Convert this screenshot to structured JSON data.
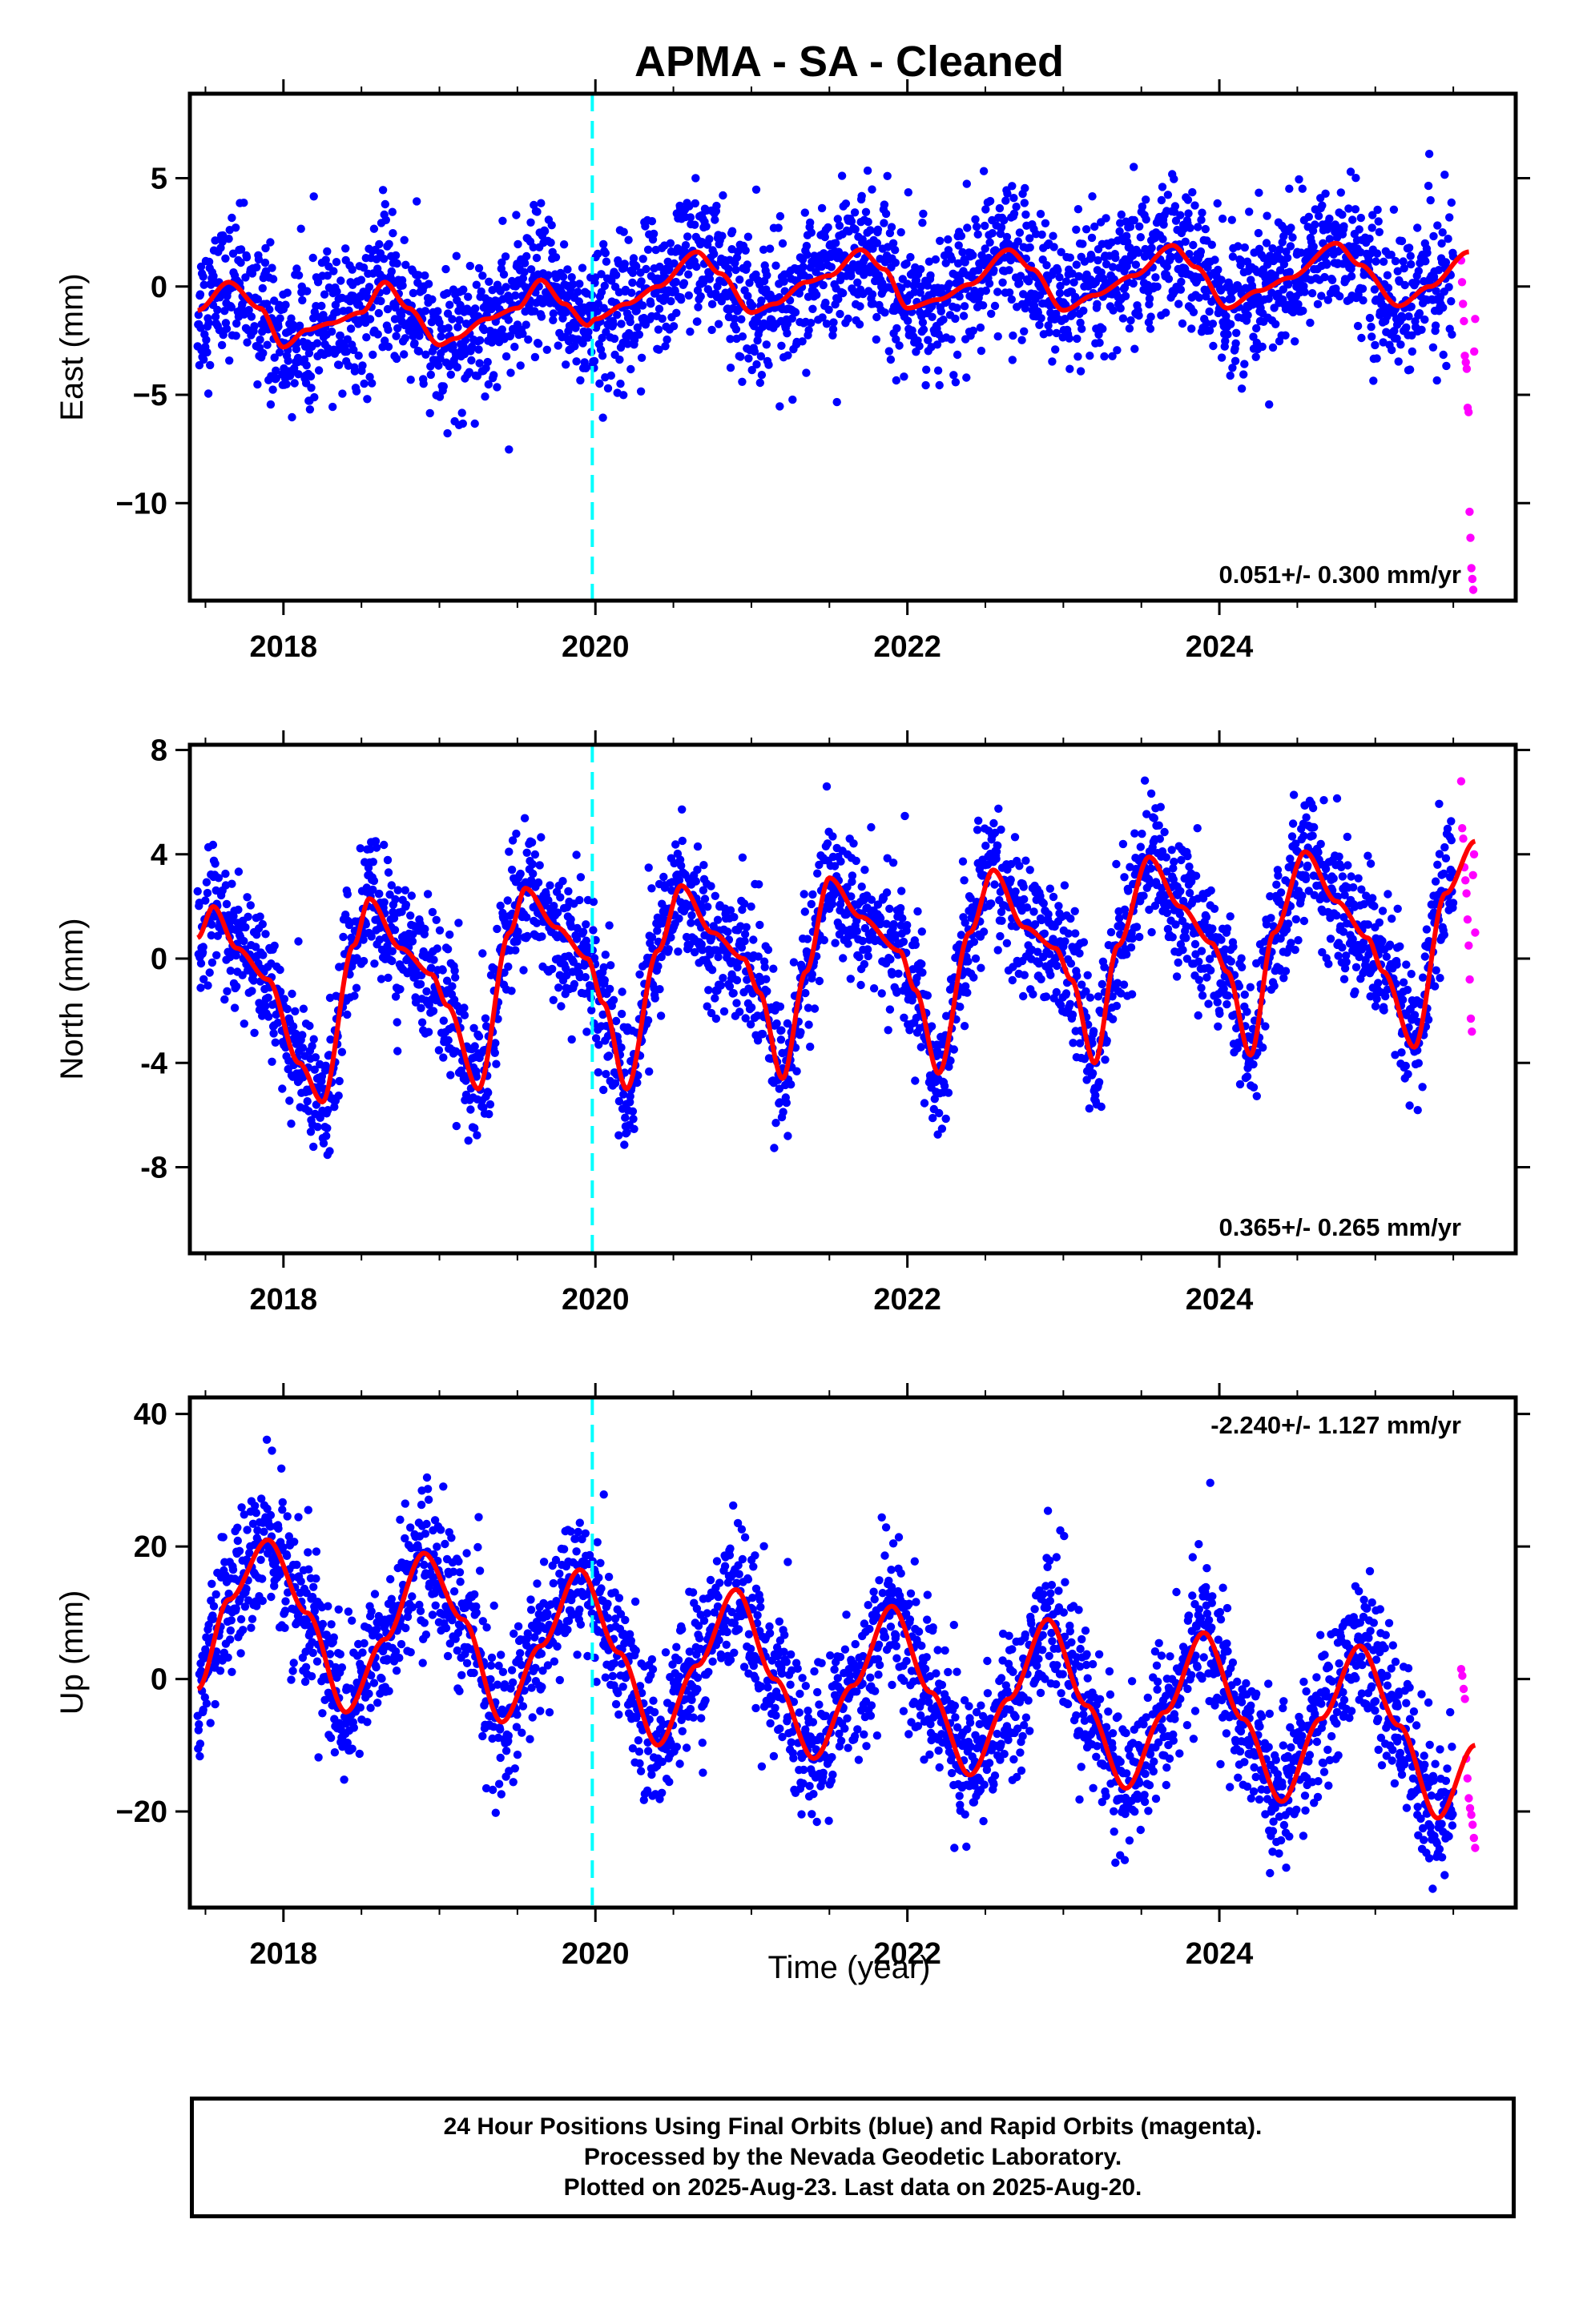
{
  "title": "APMA  - SA - Cleaned",
  "x_axis_label": "Time (year)",
  "footer": {
    "line1": "24 Hour Positions Using Final Orbits (blue) and Rapid Orbits (magenta).",
    "line2": "Processed by the Nevada Geodetic Laboratory.",
    "line3": "Plotted on 2025-Aug-23. Last data on 2025-Aug-20."
  },
  "colors": {
    "final_orbits": "#0000ff",
    "rapid_orbits": "#ff00ff",
    "model_fit": "#ff0000",
    "marker_line": "#00ffff"
  },
  "chart_data": [
    {
      "type": "scatter",
      "component": "East",
      "ylabel": "East (mm)",
      "xlim": [
        2017.4,
        2025.9
      ],
      "ylim": [
        -14.5,
        8.9
      ],
      "yticks": [
        5,
        0,
        -5,
        -10
      ],
      "ytick_labels": [
        "5",
        "0",
        "−5",
        "−10"
      ],
      "xticks": [
        2018,
        2020,
        2022,
        2024
      ],
      "xtick_labels": [
        "2018",
        "2020",
        "2022",
        "2024"
      ],
      "rate_label": "0.051+/- 0.300 mm/yr",
      "rate_position": "bottom-right",
      "vertical_line_x": 2019.98,
      "scatter_noise_sd": 1.6,
      "series": [
        {
          "name": "Final Orbits",
          "color": "#0000ff",
          "x_range": [
            2017.45,
            2025.5
          ],
          "points_shown": "daily"
        },
        {
          "name": "Rapid Orbits",
          "color": "#ff00ff",
          "x_range": [
            2025.55,
            2025.64
          ],
          "values": [
            1.2,
            0.2,
            -0.8,
            -1.6,
            -3.2,
            -3.5,
            -3.8,
            -5.6,
            -5.8,
            -10.4,
            -11.6,
            -13.0,
            -13.5,
            -14.0,
            -3.0,
            -1.5
          ]
        },
        {
          "name": "Model Fit",
          "color": "#ff0000",
          "x": [
            2017.45,
            2017.65,
            2017.85,
            2018.0,
            2018.15,
            2018.3,
            2018.5,
            2018.65,
            2018.8,
            2019.0,
            2019.1,
            2019.3,
            2019.5,
            2019.65,
            2019.8,
            2019.95,
            2020.0,
            2020.2,
            2020.4,
            2020.65,
            2020.8,
            2021.0,
            2021.15,
            2021.35,
            2021.5,
            2021.7,
            2021.85,
            2022.0,
            2022.2,
            2022.4,
            2022.65,
            2022.8,
            2023.0,
            2023.2,
            2023.45,
            2023.7,
            2023.85,
            2024.05,
            2024.25,
            2024.45,
            2024.75,
            2024.9,
            2025.15,
            2025.35,
            2025.6
          ],
          "y": [
            -1.1,
            0.2,
            -1.0,
            -2.8,
            -2.0,
            -1.7,
            -1.2,
            0.2,
            -1.0,
            -2.7,
            -2.4,
            -1.5,
            -1.0,
            0.3,
            -0.8,
            -1.8,
            -1.5,
            -0.8,
            0.0,
            1.6,
            0.6,
            -1.2,
            -0.8,
            0.2,
            0.5,
            1.7,
            0.8,
            -1.0,
            -0.6,
            0.1,
            1.7,
            0.8,
            -1.1,
            -0.4,
            0.5,
            1.9,
            0.9,
            -1.0,
            -0.2,
            0.4,
            2.0,
            1.0,
            -0.9,
            0.0,
            1.6
          ]
        }
      ]
    },
    {
      "type": "scatter",
      "component": "North",
      "ylabel": "North (mm)",
      "xlim": [
        2017.4,
        2025.9
      ],
      "ylim": [
        -11.3,
        8.2
      ],
      "yticks": [
        8,
        4,
        0,
        -4,
        -8
      ],
      "ytick_labels": [
        "8",
        "4",
        "0",
        "-4",
        "-8"
      ],
      "xticks": [
        2018,
        2020,
        2022,
        2024
      ],
      "xtick_labels": [
        "2018",
        "2020",
        "2022",
        "2024"
      ],
      "rate_label": "0.365+/- 0.265 mm/yr",
      "rate_position": "bottom-right",
      "vertical_line_x": 2019.98,
      "scatter_noise_sd": 1.3,
      "series": [
        {
          "name": "Final Orbits",
          "color": "#0000ff",
          "x_range": [
            2017.45,
            2025.5
          ],
          "points_shown": "daily"
        },
        {
          "name": "Rapid Orbits",
          "color": "#ff00ff",
          "x_range": [
            2025.55,
            2025.64
          ],
          "values": [
            6.8,
            5.0,
            4.6,
            3.5,
            3.0,
            2.5,
            1.5,
            0.5,
            -0.8,
            -2.3,
            -2.8,
            3.2,
            4.0,
            1.0
          ]
        },
        {
          "name": "Model Fit",
          "color": "#ff0000",
          "x": [
            2017.45,
            2017.55,
            2017.7,
            2017.9,
            2018.1,
            2018.25,
            2018.45,
            2018.55,
            2018.75,
            2018.95,
            2019.05,
            2019.25,
            2019.45,
            2019.55,
            2019.75,
            2019.95,
            2020.05,
            2020.2,
            2020.4,
            2020.55,
            2020.75,
            2020.95,
            2021.05,
            2021.2,
            2021.35,
            2021.5,
            2021.7,
            2021.95,
            2022.05,
            2022.2,
            2022.4,
            2022.55,
            2022.75,
            2022.95,
            2023.05,
            2023.2,
            2023.35,
            2023.55,
            2023.75,
            2023.95,
            2024.05,
            2024.2,
            2024.35,
            2024.55,
            2024.75,
            2024.95,
            2025.05,
            2025.25,
            2025.45,
            2025.64
          ],
          "y": [
            0.8,
            2.0,
            0.4,
            -0.8,
            -4.0,
            -5.5,
            0.5,
            2.3,
            0.4,
            -0.6,
            -1.8,
            -5.0,
            1.0,
            2.7,
            1.2,
            0.0,
            -1.7,
            -5.0,
            0.3,
            2.8,
            1.0,
            0.0,
            -1.3,
            -4.6,
            -0.5,
            3.1,
            1.6,
            0.3,
            -1.2,
            -4.4,
            1.0,
            3.4,
            1.2,
            0.4,
            -0.8,
            -4.0,
            0.5,
            3.9,
            2.0,
            0.6,
            -0.5,
            -3.7,
            1.0,
            4.1,
            2.2,
            0.8,
            -0.5,
            -3.4,
            2.5,
            4.5
          ]
        }
      ]
    },
    {
      "type": "scatter",
      "component": "Up",
      "ylabel": "Up (mm)",
      "xlim": [
        2017.4,
        2025.9
      ],
      "ylim": [
        -34.5,
        42.5
      ],
      "yticks": [
        40,
        20,
        0,
        -20
      ],
      "ytick_labels": [
        "40",
        "20",
        "0",
        "−20"
      ],
      "xticks": [
        2018,
        2020,
        2022,
        2024
      ],
      "xtick_labels": [
        "2018",
        "2020",
        "2022",
        "2024"
      ],
      "rate_label": "-2.240+/- 1.127 mm/yr",
      "rate_position": "top-right",
      "vertical_line_x": 2019.98,
      "scatter_noise_sd": 5.5,
      "series": [
        {
          "name": "Final Orbits",
          "color": "#0000ff",
          "x_range": [
            2017.45,
            2025.5
          ],
          "points_shown": "daily"
        },
        {
          "name": "Rapid Orbits",
          "color": "#ff00ff",
          "x_range": [
            2025.55,
            2025.64
          ],
          "values": [
            1.5,
            0.5,
            -1.5,
            -3.0,
            -12.0,
            -15.0,
            -18.0,
            -19.5,
            -20.5,
            -22.0,
            -24.0,
            -25.5
          ]
        },
        {
          "name": "Model Fit",
          "color": "#ff0000",
          "x": [
            2017.45,
            2017.65,
            2017.9,
            2018.15,
            2018.4,
            2018.65,
            2018.9,
            2019.15,
            2019.4,
            2019.65,
            2019.9,
            2020.15,
            2020.4,
            2020.65,
            2020.9,
            2021.15,
            2021.4,
            2021.65,
            2021.9,
            2022.15,
            2022.4,
            2022.65,
            2022.9,
            2023.15,
            2023.4,
            2023.65,
            2023.9,
            2024.15,
            2024.4,
            2024.65,
            2024.9,
            2025.15,
            2025.4,
            2025.64
          ],
          "y": [
            -1.5,
            12.0,
            21.0,
            10.0,
            -5.0,
            6.0,
            19.0,
            9.0,
            -6.5,
            5.0,
            16.5,
            4.0,
            -10.0,
            2.0,
            13.5,
            0.0,
            -12.0,
            -1.0,
            11.0,
            -2.0,
            -14.5,
            -3.0,
            9.0,
            -4.0,
            -16.5,
            -5.0,
            7.0,
            -6.0,
            -18.5,
            -6.0,
            5.0,
            -7.0,
            -21.0,
            -10.0
          ]
        }
      ]
    }
  ]
}
